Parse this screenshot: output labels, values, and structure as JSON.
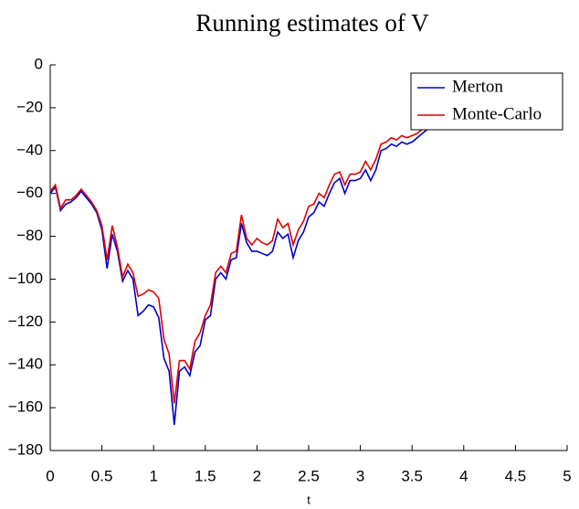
{
  "chart_data": {
    "type": "line",
    "title": "Running estimates of V",
    "x_label": "t",
    "x": [
      0,
      0.05,
      0.1,
      0.15,
      0.2,
      0.25,
      0.3,
      0.35,
      0.4,
      0.45,
      0.5,
      0.55,
      0.6,
      0.65,
      0.7,
      0.75,
      0.8,
      0.85,
      0.9,
      0.95,
      1,
      1.05,
      1.1,
      1.15,
      1.2,
      1.25,
      1.3,
      1.35,
      1.4,
      1.45,
      1.5,
      1.55,
      1.6,
      1.65,
      1.7,
      1.75,
      1.8,
      1.85,
      1.9,
      1.95,
      2,
      2.05,
      2.1,
      2.15,
      2.2,
      2.25,
      2.3,
      2.35,
      2.4,
      2.45,
      2.5,
      2.55,
      2.6,
      2.65,
      2.7,
      2.75,
      2.8,
      2.85,
      2.9,
      2.95,
      3,
      3.05,
      3.1,
      3.15,
      3.2,
      3.25,
      3.3,
      3.35,
      3.4,
      3.45,
      3.5,
      3.55,
      3.6,
      3.65
    ],
    "series": [
      {
        "name": "Merton",
        "color": "#0000cc",
        "values": [
          -60,
          -57,
          -68,
          -65,
          -64,
          -62,
          -59,
          -62,
          -65,
          -69,
          -77,
          -95,
          -79,
          -87,
          -101,
          -96,
          -100,
          -117,
          -115,
          -112,
          -113,
          -118,
          -137,
          -143,
          -168,
          -143,
          -141,
          -145,
          -134,
          -131,
          -119,
          -117,
          -100,
          -97,
          -100,
          -91,
          -90,
          -74,
          -83,
          -87,
          -87,
          -88,
          -89,
          -87,
          -78,
          -81,
          -79,
          -90,
          -82,
          -78,
          -71,
          -69,
          -64,
          -66,
          -60,
          -55,
          -53,
          -60,
          -54,
          -54,
          -53,
          -49,
          -54,
          -49,
          -40,
          -39,
          -37,
          -38,
          -36,
          -37,
          -36,
          -34,
          -32,
          -30
        ]
      },
      {
        "name": "Monte-Carlo",
        "color": "#e00000",
        "values": [
          -59,
          -56,
          -67,
          -63,
          -63,
          -61,
          -58,
          -61,
          -64,
          -68,
          -75,
          -91,
          -75,
          -85,
          -99,
          -93,
          -97,
          -108,
          -107,
          -105,
          -106,
          -109,
          -128,
          -135,
          -158,
          -138,
          -138,
          -142,
          -129,
          -125,
          -117,
          -112,
          -97,
          -94,
          -97,
          -88,
          -87,
          -70,
          -81,
          -84,
          -81,
          -83,
          -84,
          -82,
          -72,
          -76,
          -74,
          -84,
          -77,
          -73,
          -66,
          -65,
          -60,
          -62,
          -56,
          -51,
          -50,
          -56,
          -51,
          -51,
          -50,
          -45,
          -49,
          -44,
          -37,
          -36,
          -34,
          -35,
          -33,
          -34,
          -33,
          -32,
          -30,
          -29
        ]
      }
    ],
    "xlim": [
      0,
      5
    ],
    "xticks": [
      0,
      0.5,
      1,
      1.5,
      2,
      2.5,
      3,
      3.5,
      4,
      4.5,
      5
    ],
    "ylim": [
      -180,
      0
    ],
    "yticks": [
      {
        "value": 0,
        "label": "0"
      },
      {
        "value": -20,
        "label": "−20"
      },
      {
        "value": -40,
        "label": "−40"
      },
      {
        "value": -60,
        "label": "−60"
      },
      {
        "value": -80,
        "label": "−80"
      },
      {
        "value": -100,
        "label": "−100"
      },
      {
        "value": -120,
        "label": "−120"
      },
      {
        "value": -140,
        "label": "−140"
      },
      {
        "value": -160,
        "label": "−160"
      },
      {
        "value": -180,
        "label": "−180"
      }
    ],
    "legend": "upper right",
    "grid": false
  }
}
